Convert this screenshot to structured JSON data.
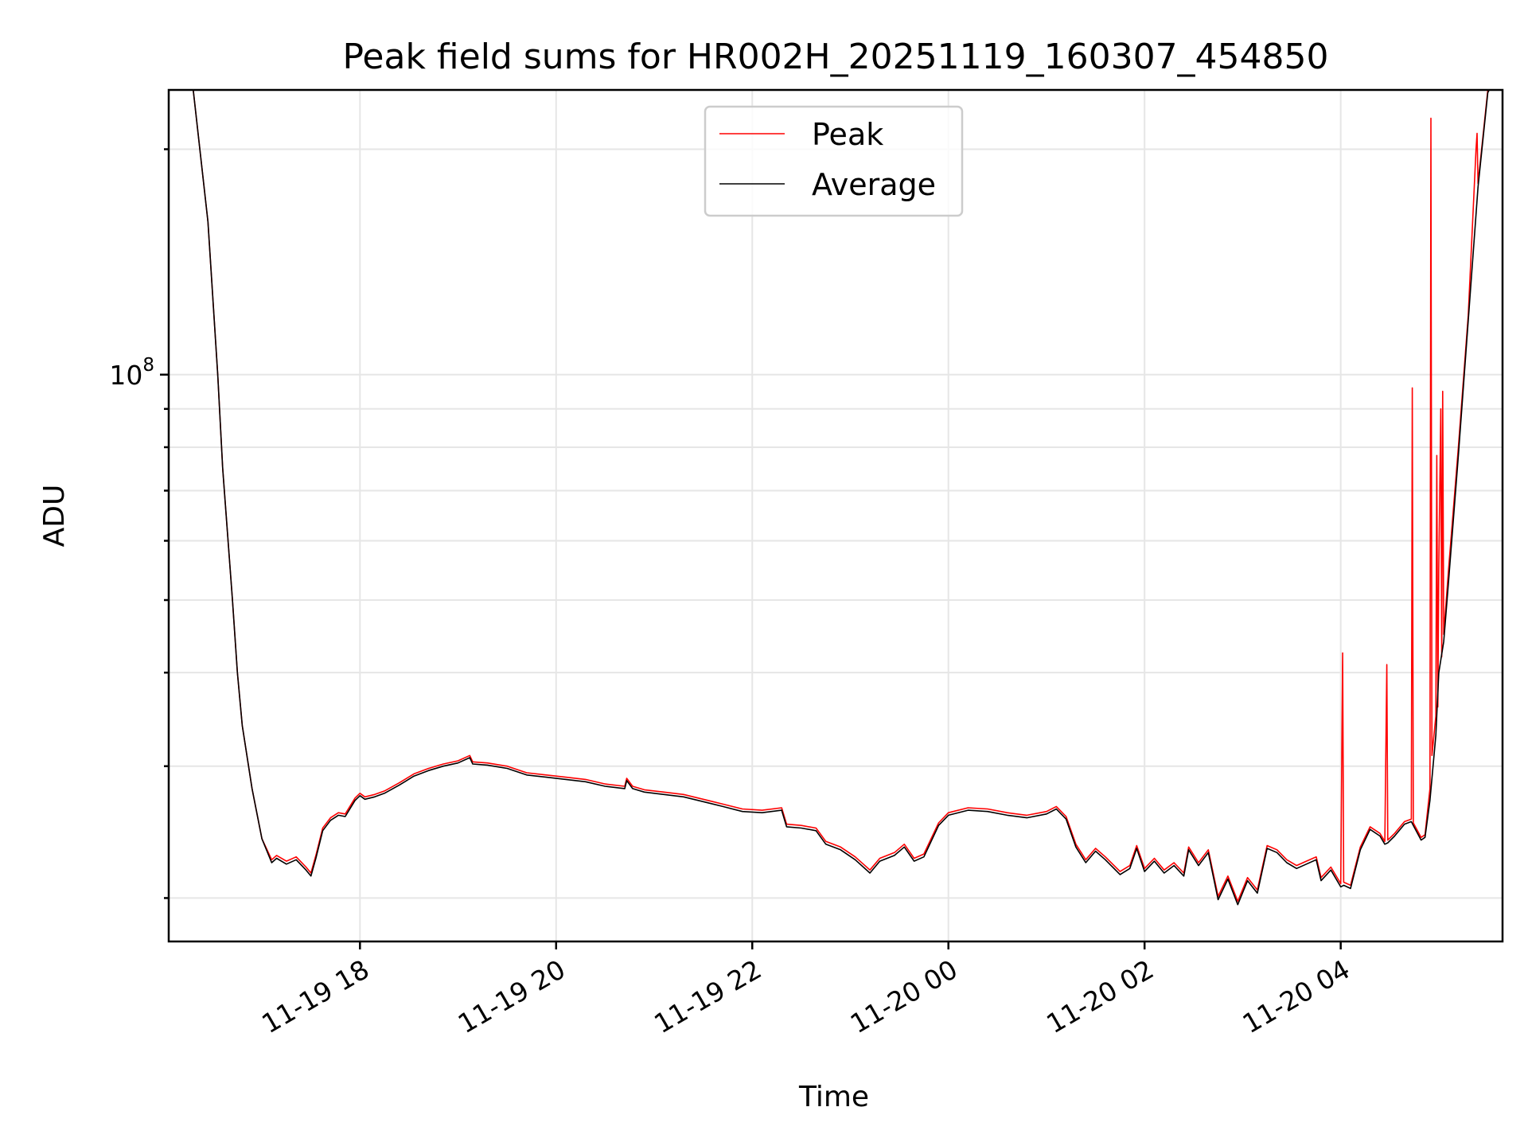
{
  "chart_data": {
    "type": "line",
    "title": "Peak field sums for HR002H_20251119_160307_454850",
    "xlabel": "Time",
    "ylabel": "ADU",
    "yscale": "log",
    "grid": true,
    "legend_position": "top-center",
    "x_unit": "hours since 2025-11-19 00:00",
    "xlim": [
      16.05,
      29.65
    ],
    "ylim": [
      17500000,
      240000000
    ],
    "x_ticks": [
      {
        "value": 18,
        "label": "11-19 18"
      },
      {
        "value": 20,
        "label": "11-19 20"
      },
      {
        "value": 22,
        "label": "11-19 22"
      },
      {
        "value": 24,
        "label": "11-20 00"
      },
      {
        "value": 26,
        "label": "11-20 02"
      },
      {
        "value": 28,
        "label": "11-20 04"
      }
    ],
    "y_major_ticks": [
      {
        "value": 100000000,
        "base": "10",
        "exp": "8"
      }
    ],
    "y_minor_ticks": [
      20000000,
      30000000,
      40000000,
      50000000,
      60000000,
      70000000,
      80000000,
      90000000,
      200000000
    ],
    "series": [
      {
        "name": "Peak",
        "color": "#ff0000",
        "points": [
          [
            16.05,
            260000000
          ],
          [
            16.3,
            240000000
          ],
          [
            16.45,
            160000000
          ],
          [
            16.55,
            100000000
          ],
          [
            16.6,
            75000000
          ],
          [
            16.7,
            50000000
          ],
          [
            16.75,
            40000000
          ],
          [
            16.8,
            34000000
          ],
          [
            16.9,
            28000000
          ],
          [
            17.0,
            24000000
          ],
          [
            17.1,
            22500000
          ],
          [
            17.15,
            22800000
          ],
          [
            17.25,
            22400000
          ],
          [
            17.35,
            22700000
          ],
          [
            17.45,
            22000000
          ],
          [
            17.5,
            21600000
          ],
          [
            17.55,
            22800000
          ],
          [
            17.62,
            24800000
          ],
          [
            17.7,
            25600000
          ],
          [
            17.78,
            26000000
          ],
          [
            17.85,
            25900000
          ],
          [
            17.95,
            27200000
          ],
          [
            18.0,
            27600000
          ],
          [
            18.05,
            27300000
          ],
          [
            18.15,
            27500000
          ],
          [
            18.25,
            27800000
          ],
          [
            18.4,
            28500000
          ],
          [
            18.55,
            29300000
          ],
          [
            18.7,
            29800000
          ],
          [
            18.85,
            30200000
          ],
          [
            19.0,
            30500000
          ],
          [
            19.12,
            31000000
          ],
          [
            19.15,
            30400000
          ],
          [
            19.3,
            30300000
          ],
          [
            19.5,
            30000000
          ],
          [
            19.7,
            29400000
          ],
          [
            19.9,
            29200000
          ],
          [
            20.1,
            29000000
          ],
          [
            20.3,
            28800000
          ],
          [
            20.5,
            28400000
          ],
          [
            20.7,
            28200000
          ],
          [
            20.72,
            28900000
          ],
          [
            20.78,
            28200000
          ],
          [
            20.9,
            27900000
          ],
          [
            21.1,
            27700000
          ],
          [
            21.3,
            27500000
          ],
          [
            21.5,
            27100000
          ],
          [
            21.7,
            26700000
          ],
          [
            21.9,
            26300000
          ],
          [
            22.1,
            26200000
          ],
          [
            22.3,
            26400000
          ],
          [
            22.35,
            25100000
          ],
          [
            22.5,
            25000000
          ],
          [
            22.65,
            24800000
          ],
          [
            22.75,
            23800000
          ],
          [
            22.9,
            23400000
          ],
          [
            23.05,
            22700000
          ],
          [
            23.2,
            21800000
          ],
          [
            23.3,
            22600000
          ],
          [
            23.45,
            23000000
          ],
          [
            23.55,
            23600000
          ],
          [
            23.65,
            22600000
          ],
          [
            23.75,
            22900000
          ],
          [
            23.9,
            25200000
          ],
          [
            24.0,
            26000000
          ],
          [
            24.2,
            26400000
          ],
          [
            24.4,
            26300000
          ],
          [
            24.6,
            26000000
          ],
          [
            24.8,
            25800000
          ],
          [
            25.0,
            26100000
          ],
          [
            25.1,
            26500000
          ],
          [
            25.2,
            25700000
          ],
          [
            25.3,
            23600000
          ],
          [
            25.4,
            22500000
          ],
          [
            25.5,
            23300000
          ],
          [
            25.6,
            22700000
          ],
          [
            25.75,
            21700000
          ],
          [
            25.85,
            22100000
          ],
          [
            25.92,
            23500000
          ],
          [
            26.0,
            21900000
          ],
          [
            26.1,
            22600000
          ],
          [
            26.2,
            21800000
          ],
          [
            26.3,
            22300000
          ],
          [
            26.4,
            21600000
          ],
          [
            26.45,
            23400000
          ],
          [
            26.55,
            22300000
          ],
          [
            26.65,
            23200000
          ],
          [
            26.75,
            20100000
          ],
          [
            26.85,
            21400000
          ],
          [
            26.95,
            19800000
          ],
          [
            27.05,
            21300000
          ],
          [
            27.15,
            20500000
          ],
          [
            27.25,
            23500000
          ],
          [
            27.35,
            23200000
          ],
          [
            27.45,
            22500000
          ],
          [
            27.55,
            22100000
          ],
          [
            27.65,
            22400000
          ],
          [
            27.75,
            22700000
          ],
          [
            27.8,
            21300000
          ],
          [
            27.9,
            22000000
          ],
          [
            28.0,
            20900000
          ],
          [
            28.02,
            42500000
          ],
          [
            28.03,
            21000000
          ],
          [
            28.1,
            20800000
          ],
          [
            28.2,
            23400000
          ],
          [
            28.3,
            24900000
          ],
          [
            28.4,
            24400000
          ],
          [
            28.45,
            23800000
          ],
          [
            28.47,
            41000000
          ],
          [
            28.48,
            23900000
          ],
          [
            28.55,
            24400000
          ],
          [
            28.65,
            25300000
          ],
          [
            28.72,
            25500000
          ],
          [
            28.73,
            96000000
          ],
          [
            28.74,
            25200000
          ],
          [
            28.82,
            24100000
          ],
          [
            28.86,
            24300000
          ],
          [
            28.91,
            28000000
          ],
          [
            28.92,
            220000000
          ],
          [
            28.93,
            31000000
          ],
          [
            28.97,
            35000000
          ],
          [
            28.98,
            78000000
          ],
          [
            28.99,
            36000000
          ],
          [
            29.0,
            55000000
          ],
          [
            29.02,
            90000000
          ],
          [
            29.03,
            42000000
          ],
          [
            29.04,
            95000000
          ],
          [
            29.05,
            45000000
          ],
          [
            29.1,
            55000000
          ],
          [
            29.2,
            80000000
          ],
          [
            29.3,
            120000000
          ],
          [
            29.38,
            200000000
          ],
          [
            29.39,
            210000000
          ],
          [
            29.4,
            180000000
          ],
          [
            29.5,
            240000000
          ],
          [
            29.65,
            260000000
          ]
        ]
      },
      {
        "name": "Average",
        "color": "#000000",
        "points": [
          [
            16.05,
            260000000
          ],
          [
            16.3,
            240000000
          ],
          [
            16.45,
            160000000
          ],
          [
            16.55,
            100000000
          ],
          [
            16.6,
            75000000
          ],
          [
            16.7,
            50000000
          ],
          [
            16.75,
            40000000
          ],
          [
            16.8,
            34000000
          ],
          [
            16.9,
            28000000
          ],
          [
            17.0,
            24000000
          ],
          [
            17.1,
            22300000
          ],
          [
            17.15,
            22600000
          ],
          [
            17.25,
            22200000
          ],
          [
            17.35,
            22500000
          ],
          [
            17.45,
            21800000
          ],
          [
            17.5,
            21400000
          ],
          [
            17.55,
            22600000
          ],
          [
            17.62,
            24600000
          ],
          [
            17.7,
            25400000
          ],
          [
            17.78,
            25800000
          ],
          [
            17.85,
            25700000
          ],
          [
            17.95,
            27000000
          ],
          [
            18.0,
            27400000
          ],
          [
            18.05,
            27100000
          ],
          [
            18.15,
            27300000
          ],
          [
            18.25,
            27600000
          ],
          [
            18.4,
            28300000
          ],
          [
            18.55,
            29100000
          ],
          [
            18.7,
            29600000
          ],
          [
            18.85,
            30000000
          ],
          [
            19.0,
            30300000
          ],
          [
            19.12,
            30800000
          ],
          [
            19.15,
            30200000
          ],
          [
            19.3,
            30100000
          ],
          [
            19.5,
            29800000
          ],
          [
            19.7,
            29200000
          ],
          [
            19.9,
            29000000
          ],
          [
            20.1,
            28800000
          ],
          [
            20.3,
            28600000
          ],
          [
            20.5,
            28200000
          ],
          [
            20.7,
            28000000
          ],
          [
            20.72,
            28700000
          ],
          [
            20.78,
            28000000
          ],
          [
            20.9,
            27700000
          ],
          [
            21.1,
            27500000
          ],
          [
            21.3,
            27300000
          ],
          [
            21.5,
            26900000
          ],
          [
            21.7,
            26500000
          ],
          [
            21.9,
            26100000
          ],
          [
            22.1,
            26000000
          ],
          [
            22.3,
            26200000
          ],
          [
            22.35,
            24900000
          ],
          [
            22.5,
            24800000
          ],
          [
            22.65,
            24600000
          ],
          [
            22.75,
            23600000
          ],
          [
            22.9,
            23200000
          ],
          [
            23.05,
            22500000
          ],
          [
            23.2,
            21600000
          ],
          [
            23.3,
            22400000
          ],
          [
            23.45,
            22800000
          ],
          [
            23.55,
            23400000
          ],
          [
            23.65,
            22400000
          ],
          [
            23.75,
            22700000
          ],
          [
            23.9,
            25000000
          ],
          [
            24.0,
            25800000
          ],
          [
            24.2,
            26200000
          ],
          [
            24.4,
            26100000
          ],
          [
            24.6,
            25800000
          ],
          [
            24.8,
            25600000
          ],
          [
            25.0,
            25900000
          ],
          [
            25.1,
            26300000
          ],
          [
            25.2,
            25500000
          ],
          [
            25.3,
            23400000
          ],
          [
            25.4,
            22300000
          ],
          [
            25.5,
            23100000
          ],
          [
            25.6,
            22500000
          ],
          [
            25.75,
            21500000
          ],
          [
            25.85,
            21900000
          ],
          [
            25.92,
            23300000
          ],
          [
            26.0,
            21700000
          ],
          [
            26.1,
            22400000
          ],
          [
            26.2,
            21600000
          ],
          [
            26.3,
            22100000
          ],
          [
            26.4,
            21400000
          ],
          [
            26.45,
            23200000
          ],
          [
            26.55,
            22100000
          ],
          [
            26.65,
            23000000
          ],
          [
            26.75,
            19900000
          ],
          [
            26.85,
            21200000
          ],
          [
            26.95,
            19600000
          ],
          [
            27.05,
            21100000
          ],
          [
            27.15,
            20300000
          ],
          [
            27.25,
            23300000
          ],
          [
            27.35,
            23000000
          ],
          [
            27.45,
            22300000
          ],
          [
            27.55,
            21900000
          ],
          [
            27.65,
            22200000
          ],
          [
            27.75,
            22500000
          ],
          [
            27.8,
            21100000
          ],
          [
            27.9,
            21800000
          ],
          [
            28.0,
            20700000
          ],
          [
            28.03,
            20800000
          ],
          [
            28.1,
            20600000
          ],
          [
            28.2,
            23200000
          ],
          [
            28.3,
            24700000
          ],
          [
            28.4,
            24200000
          ],
          [
            28.45,
            23600000
          ],
          [
            28.48,
            23700000
          ],
          [
            28.55,
            24200000
          ],
          [
            28.65,
            25100000
          ],
          [
            28.72,
            25300000
          ],
          [
            28.74,
            25000000
          ],
          [
            28.82,
            23900000
          ],
          [
            28.86,
            24100000
          ],
          [
            28.91,
            27000000
          ],
          [
            28.97,
            33000000
          ],
          [
            29.0,
            40000000
          ],
          [
            29.05,
            44000000
          ],
          [
            29.1,
            53000000
          ],
          [
            29.2,
            78000000
          ],
          [
            29.3,
            118000000
          ],
          [
            29.4,
            178000000
          ],
          [
            29.5,
            238000000
          ],
          [
            29.65,
            260000000
          ]
        ]
      }
    ]
  }
}
